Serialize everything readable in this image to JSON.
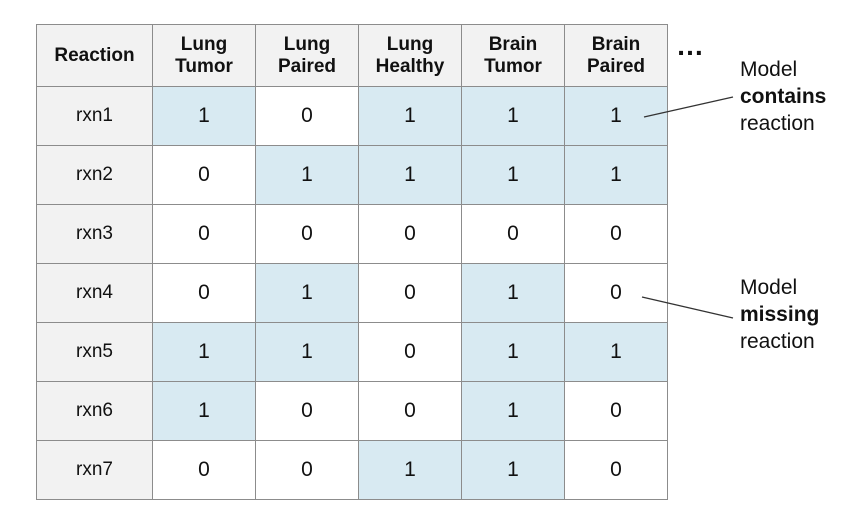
{
  "table": {
    "header_first": "Reaction",
    "columns": [
      {
        "line1": "Lung",
        "line2": "Tumor"
      },
      {
        "line1": "Lung",
        "line2": "Paired"
      },
      {
        "line1": "Lung",
        "line2": "Healthy"
      },
      {
        "line1": "Brain",
        "line2": "Tumor"
      },
      {
        "line1": "Brain",
        "line2": "Paired"
      }
    ],
    "rows": [
      {
        "label": "rxn1",
        "values": [
          1,
          0,
          1,
          1,
          1
        ]
      },
      {
        "label": "rxn2",
        "values": [
          0,
          1,
          1,
          1,
          1
        ]
      },
      {
        "label": "rxn3",
        "values": [
          0,
          0,
          0,
          0,
          0
        ]
      },
      {
        "label": "rxn4",
        "values": [
          0,
          1,
          0,
          1,
          0
        ]
      },
      {
        "label": "rxn5",
        "values": [
          1,
          1,
          0,
          1,
          1
        ]
      },
      {
        "label": "rxn6",
        "values": [
          1,
          0,
          0,
          1,
          0
        ]
      },
      {
        "label": "rxn7",
        "values": [
          0,
          0,
          1,
          1,
          0
        ]
      }
    ],
    "ellipsis": "…"
  },
  "annotations": {
    "contains": {
      "line1": "Model",
      "line2": "contains",
      "line3": "reaction"
    },
    "missing": {
      "line1": "Model",
      "line2": "missing",
      "line3": "reaction"
    }
  },
  "colors": {
    "present": "#d8eaf2",
    "absent": "#ffffff",
    "header": "#f2f2f2",
    "border": "#8c8c8c"
  }
}
